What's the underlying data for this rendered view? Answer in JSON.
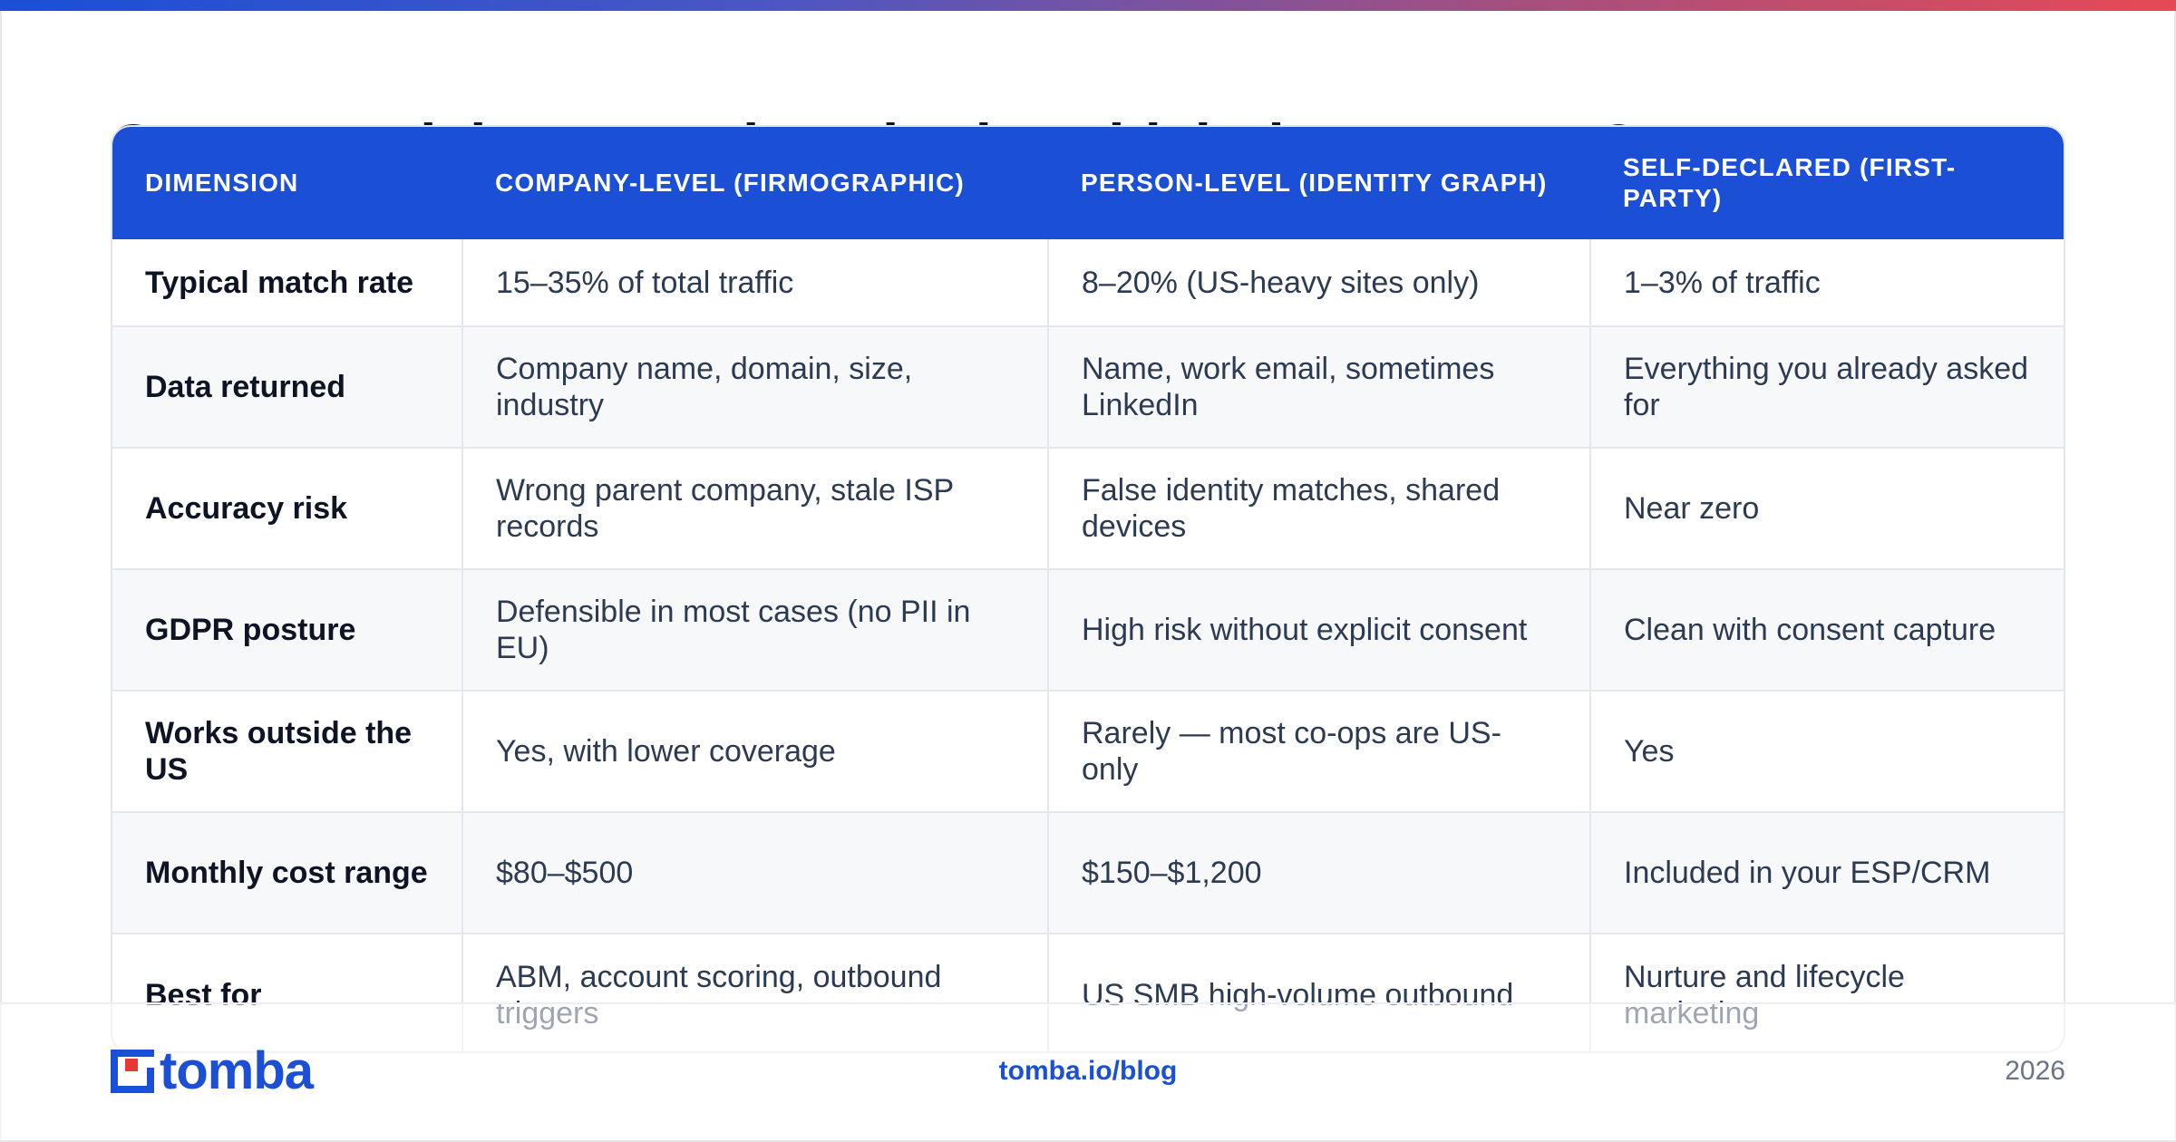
{
  "slide": {
    "headline": "Compare visitor-reveal methods: which data you get?",
    "table": {
      "headers": [
        "DIMENSION",
        "COMPANY-LEVEL (FIRMOGRAPHIC)",
        "PERSON-LEVEL (IDENTITY GRAPH)",
        "SELF-DECLARED (FIRST-PARTY)"
      ],
      "rows": [
        [
          "Typical match rate",
          "15–35% of total traffic",
          "8–20% (US-heavy sites only)",
          "1–3% of traffic"
        ],
        [
          "Data returned",
          "Company name, domain, size, industry",
          "Name, work email, sometimes LinkedIn",
          "Everything you already asked for"
        ],
        [
          "Accuracy risk",
          "Wrong parent company, stale ISP records",
          "False identity matches, shared devices",
          "Near zero"
        ],
        [
          "GDPR posture",
          "Defensible in most cases (no PII in EU)",
          "High risk without explicit consent",
          "Clean with consent capture"
        ],
        [
          "Works outside the US",
          "Yes, with lower coverage",
          "Rarely — most co-ops are US-only",
          "Yes"
        ],
        [
          "Monthly cost range",
          "$80–$500",
          "$150–$1,200",
          "Included in your ESP/CRM"
        ],
        [
          "Best for",
          "ABM, account scoring, outbound triggers",
          "US SMB high-volume outbound",
          "Nurture and lifecycle marketing"
        ]
      ]
    }
  },
  "footer": {
    "logo_text": "tomba",
    "url": "tomba.io/blog",
    "year": "2026"
  },
  "colors": {
    "accent": "#1a4fd6",
    "logo_red": "#e53935",
    "gradient": [
      "#1a4fd6",
      "#4b56c4",
      "#a6507e",
      "#e54a55"
    ]
  },
  "icons": {
    "logo_mark": "tomba-logo-icon"
  }
}
